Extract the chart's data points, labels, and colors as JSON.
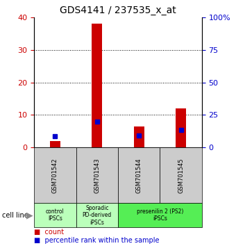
{
  "title": "GDS4141 / 237535_x_at",
  "samples": [
    "GSM701542",
    "GSM701543",
    "GSM701544",
    "GSM701545"
  ],
  "count_values": [
    2,
    38,
    6.5,
    12
  ],
  "percentile_values": [
    8.5,
    20,
    9.5,
    13.5
  ],
  "left_ylim": [
    0,
    40
  ],
  "right_ylim": [
    0,
    100
  ],
  "left_yticks": [
    0,
    10,
    20,
    30,
    40
  ],
  "right_yticks": [
    0,
    25,
    50,
    75,
    100
  ],
  "right_yticklabels": [
    "0",
    "25",
    "50",
    "75",
    "100%"
  ],
  "bar_color": "#cc0000",
  "dot_color": "#0000cc",
  "grid_yticks": [
    10,
    20,
    30
  ],
  "background_color": "#ffffff",
  "sample_box_color": "#cccccc",
  "groups": [
    {
      "label": "control\nIPSCs",
      "start": 0,
      "end": 1,
      "color": "#bbffbb"
    },
    {
      "label": "Sporadic\nPD-derived\niPSCs",
      "start": 1,
      "end": 2,
      "color": "#bbffbb"
    },
    {
      "label": "presenilin 2 (PS2)\niPSCs",
      "start": 2,
      "end": 4,
      "color": "#55ee55"
    }
  ],
  "cell_line_label": "cell line",
  "legend_count": "count",
  "legend_percentile": "percentile rank within the sample",
  "figsize": [
    3.4,
    3.54
  ],
  "dpi": 100
}
